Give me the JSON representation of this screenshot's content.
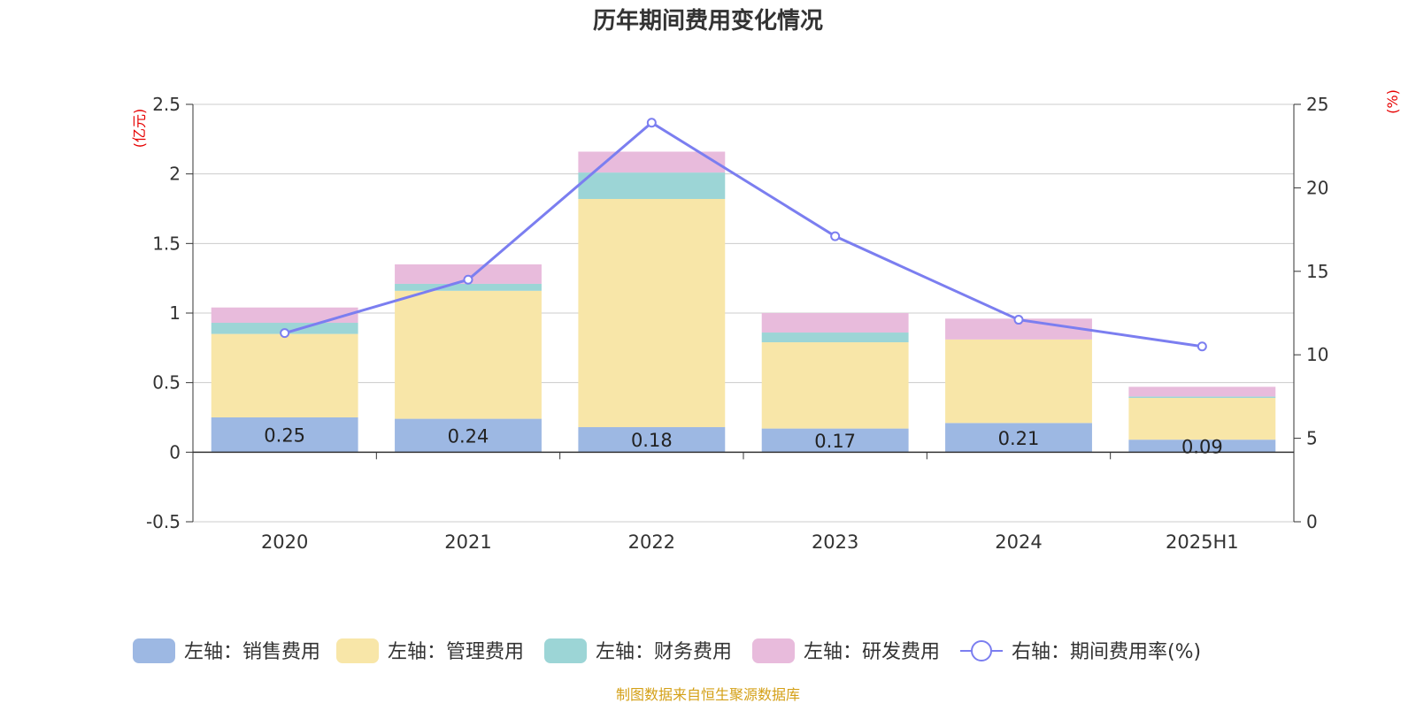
{
  "chart_data": {
    "type": "bar",
    "title": "历年期间费用变化情况",
    "categories": [
      "2020",
      "2021",
      "2022",
      "2023",
      "2024",
      "2025H1"
    ],
    "left_axis": {
      "unit_label": "(亿元)",
      "ylim": [
        -0.5,
        2.5
      ],
      "ticks": [
        "-0.5",
        "0",
        "0.5",
        "1",
        "1.5",
        "2",
        "2.5"
      ]
    },
    "right_axis": {
      "unit_label": "(%)",
      "ylim": [
        0,
        25
      ],
      "ticks": [
        "0",
        "5",
        "10",
        "15",
        "20",
        "25"
      ]
    },
    "series": [
      {
        "name": "左轴：销售费用",
        "kind": "bar",
        "color": "#9db8e3",
        "values": [
          0.25,
          0.24,
          0.18,
          0.17,
          0.21,
          0.09
        ],
        "labels": [
          "0.25",
          "0.24",
          "0.18",
          "0.17",
          "0.21",
          "0.09"
        ]
      },
      {
        "name": "左轴：管理费用",
        "kind": "bar",
        "color": "#f8e6a8",
        "values": [
          0.6,
          0.92,
          1.64,
          0.62,
          0.6,
          0.3
        ]
      },
      {
        "name": "左轴：财务费用",
        "kind": "bar",
        "color": "#9cd5d6",
        "values": [
          0.08,
          0.05,
          0.19,
          0.07,
          0.0,
          0.01
        ]
      },
      {
        "name": "左轴：研发费用",
        "kind": "bar",
        "color": "#e8bbdc",
        "values": [
          0.11,
          0.14,
          0.15,
          0.14,
          0.15,
          0.07
        ]
      },
      {
        "name": "右轴：期间费用率(%)",
        "kind": "line",
        "color": "#7b7ef0",
        "axis": "right",
        "values": [
          11.3,
          14.5,
          23.9,
          17.1,
          12.1,
          10.5
        ]
      }
    ],
    "grid": true,
    "legend_position": "bottom"
  },
  "source_note": "制图数据来自恒生聚源数据库"
}
